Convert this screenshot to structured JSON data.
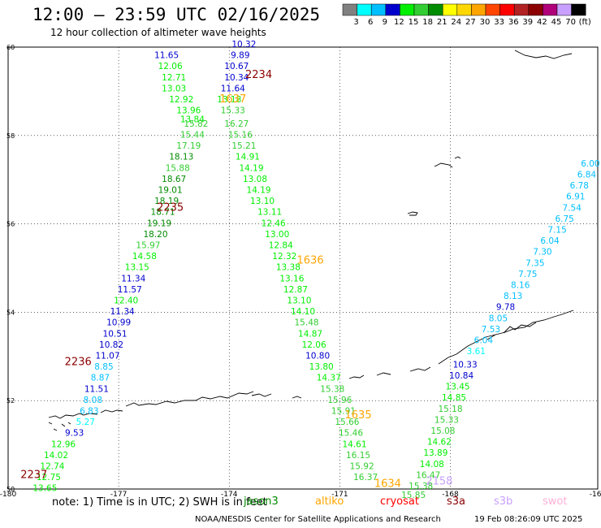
{
  "title": "12:00 — 23:59 UTC 02/16/2025",
  "subtitle": "12 hour collection of altimeter wave heights",
  "colorbar": {
    "labels": [
      "3",
      "6",
      "9",
      "12",
      "15",
      "18",
      "21",
      "24",
      "27",
      "30",
      "33",
      "36",
      "39",
      "42",
      "45",
      "70",
      "(ft)"
    ],
    "colors": [
      "#808080",
      "#00ffff",
      "#00bfff",
      "#0000cd",
      "#00ee00",
      "#32cd32",
      "#008b00",
      "#ffff00",
      "#ffd700",
      "#ffa500",
      "#ff4500",
      "#ff0000",
      "#b22222",
      "#8b0000",
      "#b0007a",
      "#c8a0ff",
      "#000000"
    ]
  },
  "note": "note: 1) Time is in UTC; 2) SWH is in feet",
  "satellites": [
    {
      "name": "jason3",
      "color": "#008b00"
    },
    {
      "name": "altiko",
      "color": "#ffa500"
    },
    {
      "name": "cryosat",
      "color": "#ff0000"
    },
    {
      "name": "s3a",
      "color": "#8b0000"
    },
    {
      "name": "s3b",
      "color": "#c8a0ff"
    },
    {
      "name": "swot",
      "color": "#ffb0d8"
    }
  ],
  "credit": "NOAA/NESDIS Center for Satellite Applications and Research",
  "timestamp": "19 Feb 08:26:09 UTC 2025",
  "chart_data": {
    "type": "scatter",
    "title": "12:00 — 23:59 UTC 02/16/2025",
    "subtitle": "12 hour collection of altimeter wave heights",
    "xlim": [
      -180,
      -164
    ],
    "ylim": [
      50,
      60
    ],
    "xticks": [
      "-180",
      "-177",
      "-174",
      "-171",
      "-168",
      "-164"
    ],
    "yticks": [
      "50",
      "52",
      "54",
      "56",
      "58",
      "60"
    ],
    "grid": true,
    "pass_labels": [
      {
        "text": "2234",
        "lon": -173.2,
        "lat": 59.3,
        "color": "#8b0000"
      },
      {
        "text": "1637",
        "lon": -173.9,
        "lat": 58.75,
        "color": "#ffa500"
      },
      {
        "text": "2235",
        "lon": -175.6,
        "lat": 56.3,
        "color": "#8b0000"
      },
      {
        "text": "1636",
        "lon": -171.8,
        "lat": 55.1,
        "color": "#ffa500"
      },
      {
        "text": "2236",
        "lon": -178.1,
        "lat": 52.8,
        "color": "#8b0000"
      },
      {
        "text": "1635",
        "lon": -170.5,
        "lat": 51.6,
        "color": "#ffa500"
      },
      {
        "text": "2237",
        "lon": -179.3,
        "lat": 50.25,
        "color": "#8b0000"
      },
      {
        "text": "1634",
        "lon": -169.7,
        "lat": 50.05,
        "color": "#ffa500"
      },
      {
        "text": "2158",
        "lon": -168.3,
        "lat": 50.1,
        "color": "#c8a0ff"
      }
    ],
    "series": [
      {
        "name": "s3a",
        "points": [
          {
            "lon": -175.7,
            "lat": 59.75,
            "v": 11.65
          },
          {
            "lon": -175.6,
            "lat": 59.5,
            "v": 12.06
          },
          {
            "lon": -175.5,
            "lat": 59.25,
            "v": 12.71
          },
          {
            "lon": -175.5,
            "lat": 59.0,
            "v": 13.03
          },
          {
            "lon": -175.3,
            "lat": 58.75,
            "v": 12.92
          },
          {
            "lon": -175.1,
            "lat": 58.5,
            "v": 13.96
          },
          {
            "lon": -175.0,
            "lat": 58.3,
            "v": 13.84
          },
          {
            "lon": -174.9,
            "lat": 58.2,
            "v": 15.82
          },
          {
            "lon": -175.0,
            "lat": 57.95,
            "v": 15.44
          },
          {
            "lon": -175.1,
            "lat": 57.7,
            "v": 17.19
          },
          {
            "lon": -175.3,
            "lat": 57.45,
            "v": 18.13
          },
          {
            "lon": -175.4,
            "lat": 57.2,
            "v": 15.88
          },
          {
            "lon": -175.5,
            "lat": 56.95,
            "v": 18.67
          },
          {
            "lon": -175.6,
            "lat": 56.7,
            "v": 19.01
          },
          {
            "lon": -175.7,
            "lat": 56.45,
            "v": 18.19
          },
          {
            "lon": -175.8,
            "lat": 56.2,
            "v": 18.71
          },
          {
            "lon": -175.9,
            "lat": 55.95,
            "v": 19.19
          },
          {
            "lon": -176.0,
            "lat": 55.7,
            "v": 18.2
          },
          {
            "lon": -176.2,
            "lat": 55.45,
            "v": 15.97
          },
          {
            "lon": -176.3,
            "lat": 55.2,
            "v": 14.58
          },
          {
            "lon": -176.5,
            "lat": 54.95,
            "v": 13.15
          },
          {
            "lon": -176.6,
            "lat": 54.7,
            "v": 11.34
          },
          {
            "lon": -176.7,
            "lat": 54.45,
            "v": 11.57
          },
          {
            "lon": -176.8,
            "lat": 54.2,
            "v": 12.4
          },
          {
            "lon": -176.9,
            "lat": 53.95,
            "v": 11.34
          },
          {
            "lon": -177.0,
            "lat": 53.7,
            "v": 10.99
          },
          {
            "lon": -177.1,
            "lat": 53.45,
            "v": 10.51
          },
          {
            "lon": -177.2,
            "lat": 53.2,
            "v": 10.82
          },
          {
            "lon": -177.3,
            "lat": 52.95,
            "v": 11.07
          },
          {
            "lon": -177.4,
            "lat": 52.7,
            "v": 8.85
          },
          {
            "lon": -177.5,
            "lat": 52.45,
            "v": 8.87
          },
          {
            "lon": -177.6,
            "lat": 52.2,
            "v": 11.51
          },
          {
            "lon": -177.7,
            "lat": 51.95,
            "v": 8.08
          },
          {
            "lon": -177.8,
            "lat": 51.7,
            "v": 6.83
          },
          {
            "lon": -177.9,
            "lat": 51.45,
            "v": 5.27
          },
          {
            "lon": -178.2,
            "lat": 51.2,
            "v": 9.53
          },
          {
            "lon": -178.5,
            "lat": 50.95,
            "v": 12.96
          },
          {
            "lon": -178.7,
            "lat": 50.7,
            "v": 14.02
          },
          {
            "lon": -178.8,
            "lat": 50.45,
            "v": 12.74
          },
          {
            "lon": -178.9,
            "lat": 50.2,
            "v": 12.75
          },
          {
            "lon": -179.0,
            "lat": 49.95,
            "v": 13.65
          }
        ]
      },
      {
        "name": "altiko",
        "points": [
          {
            "lon": -173.6,
            "lat": 60.0,
            "v": 10.32
          },
          {
            "lon": -173.7,
            "lat": 59.75,
            "v": 9.89
          },
          {
            "lon": -173.8,
            "lat": 59.5,
            "v": 10.67
          },
          {
            "lon": -173.8,
            "lat": 59.25,
            "v": 10.34
          },
          {
            "lon": -173.9,
            "lat": 59.0,
            "v": 11.64
          },
          {
            "lon": -174.0,
            "lat": 58.75,
            "v": 13.18
          },
          {
            "lon": -173.9,
            "lat": 58.5,
            "v": 15.33
          },
          {
            "lon": -173.8,
            "lat": 58.2,
            "v": 16.27
          },
          {
            "lon": -173.7,
            "lat": 57.95,
            "v": 15.16
          },
          {
            "lon": -173.6,
            "lat": 57.7,
            "v": 15.21
          },
          {
            "lon": -173.5,
            "lat": 57.45,
            "v": 14.91
          },
          {
            "lon": -173.4,
            "lat": 57.2,
            "v": 14.19
          },
          {
            "lon": -173.3,
            "lat": 56.95,
            "v": 13.08
          },
          {
            "lon": -173.2,
            "lat": 56.7,
            "v": 14.19
          },
          {
            "lon": -173.1,
            "lat": 56.45,
            "v": 13.1
          },
          {
            "lon": -172.9,
            "lat": 56.2,
            "v": 13.11
          },
          {
            "lon": -172.8,
            "lat": 55.95,
            "v": 12.46
          },
          {
            "lon": -172.7,
            "lat": 55.7,
            "v": 13.0
          },
          {
            "lon": -172.6,
            "lat": 55.45,
            "v": 12.84
          },
          {
            "lon": -172.5,
            "lat": 55.2,
            "v": 12.32
          },
          {
            "lon": -172.4,
            "lat": 54.95,
            "v": 13.38
          },
          {
            "lon": -172.3,
            "lat": 54.7,
            "v": 13.16
          },
          {
            "lon": -172.2,
            "lat": 54.45,
            "v": 12.87
          },
          {
            "lon": -172.1,
            "lat": 54.2,
            "v": 13.1
          },
          {
            "lon": -172.0,
            "lat": 53.95,
            "v": 14.1
          },
          {
            "lon": -171.9,
            "lat": 53.7,
            "v": 15.48
          },
          {
            "lon": -171.8,
            "lat": 53.45,
            "v": 14.87
          },
          {
            "lon": -171.7,
            "lat": 53.2,
            "v": 12.06
          },
          {
            "lon": -171.6,
            "lat": 52.95,
            "v": 10.8
          },
          {
            "lon": -171.5,
            "lat": 52.7,
            "v": 13.8
          },
          {
            "lon": -171.3,
            "lat": 52.45,
            "v": 14.37
          },
          {
            "lon": -171.2,
            "lat": 52.2,
            "v": 15.38
          },
          {
            "lon": -171.0,
            "lat": 51.95,
            "v": 15.96
          },
          {
            "lon": -170.9,
            "lat": 51.7,
            "v": 15.91
          },
          {
            "lon": -170.8,
            "lat": 51.45,
            "v": 15.66
          },
          {
            "lon": -170.7,
            "lat": 51.2,
            "v": 15.46
          },
          {
            "lon": -170.6,
            "lat": 50.95,
            "v": 14.61
          },
          {
            "lon": -170.5,
            "lat": 50.7,
            "v": 16.15
          },
          {
            "lon": -170.4,
            "lat": 50.45,
            "v": 15.92
          },
          {
            "lon": -170.3,
            "lat": 50.2,
            "v": 16.37
          }
        ]
      },
      {
        "name": "s3b",
        "points": [
          {
            "lon": -164.2,
            "lat": 57.3,
            "v": 6.0
          },
          {
            "lon": -164.3,
            "lat": 57.05,
            "v": 6.84
          },
          {
            "lon": -164.5,
            "lat": 56.8,
            "v": 6.78
          },
          {
            "lon": -164.6,
            "lat": 56.55,
            "v": 6.91
          },
          {
            "lon": -164.7,
            "lat": 56.3,
            "v": 7.54
          },
          {
            "lon": -164.9,
            "lat": 56.05,
            "v": 6.75
          },
          {
            "lon": -165.1,
            "lat": 55.8,
            "v": 7.15
          },
          {
            "lon": -165.3,
            "lat": 55.55,
            "v": 6.04
          },
          {
            "lon": -165.5,
            "lat": 55.3,
            "v": 7.3
          },
          {
            "lon": -165.7,
            "lat": 55.05,
            "v": 7.35
          },
          {
            "lon": -165.9,
            "lat": 54.8,
            "v": 7.75
          },
          {
            "lon": -166.1,
            "lat": 54.55,
            "v": 8.16
          },
          {
            "lon": -166.3,
            "lat": 54.3,
            "v": 8.13
          },
          {
            "lon": -166.5,
            "lat": 54.05,
            "v": 9.78
          },
          {
            "lon": -166.7,
            "lat": 53.8,
            "v": 8.05
          },
          {
            "lon": -166.9,
            "lat": 53.55,
            "v": 7.53
          },
          {
            "lon": -167.1,
            "lat": 53.3,
            "v": 6.04
          },
          {
            "lon": -167.3,
            "lat": 53.05,
            "v": 3.61
          },
          {
            "lon": -167.6,
            "lat": 52.75,
            "v": 10.33
          },
          {
            "lon": -167.7,
            "lat": 52.5,
            "v": 10.84
          },
          {
            "lon": -167.8,
            "lat": 52.25,
            "v": 13.45
          },
          {
            "lon": -167.9,
            "lat": 52.0,
            "v": 14.85
          },
          {
            "lon": -168.0,
            "lat": 51.75,
            "v": 15.18
          },
          {
            "lon": -168.1,
            "lat": 51.5,
            "v": 15.33
          },
          {
            "lon": -168.2,
            "lat": 51.25,
            "v": 15.08
          },
          {
            "lon": -168.3,
            "lat": 51.0,
            "v": 14.62
          },
          {
            "lon": -168.4,
            "lat": 50.75,
            "v": 13.89
          },
          {
            "lon": -168.5,
            "lat": 50.5,
            "v": 14.08
          },
          {
            "lon": -168.6,
            "lat": 50.25,
            "v": 16.47
          },
          {
            "lon": -168.8,
            "lat": 50.0,
            "v": 15.38
          },
          {
            "lon": -169.0,
            "lat": 49.8,
            "v": 15.85
          }
        ]
      }
    ]
  }
}
